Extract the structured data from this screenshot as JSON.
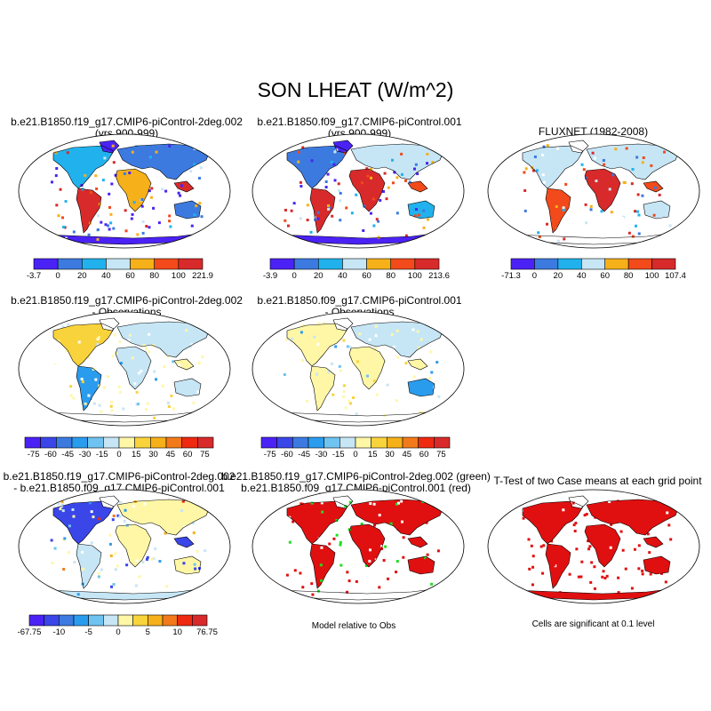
{
  "figure": {
    "title": "SON LHEAT (W/m^2)"
  },
  "chart_data": [
    {
      "type": "heatmap",
      "panel": "case1",
      "title_line1": "b.e21.B1850.f19_g17.CMIP6-piControl-2deg.002",
      "title_line2": "(yrs 900-999)",
      "colorbar": {
        "levels": [
          "-3.7",
          "0",
          "20",
          "40",
          "60",
          "80",
          "100",
          "221.9"
        ],
        "colors": [
          "#4b22f5",
          "#3c7ae0",
          "#21b2ee",
          "#c6e6f6",
          "#f6b01a",
          "#f24a1a",
          "#d82a2a"
        ]
      }
    },
    {
      "type": "heatmap",
      "panel": "case2",
      "title_line1": "b.e21.B1850.f09_g17.CMIP6-piControl.001",
      "title_line2": "(yrs 900-999)",
      "colorbar": {
        "levels": [
          "-3.9",
          "0",
          "20",
          "40",
          "60",
          "80",
          "100",
          "213.6"
        ],
        "colors": [
          "#4b22f5",
          "#3c7ae0",
          "#21b2ee",
          "#c6e6f6",
          "#f6b01a",
          "#f24a1a",
          "#d82a2a"
        ]
      }
    },
    {
      "type": "heatmap",
      "panel": "obs",
      "title_line1": "FLUXNET (1982-2008)",
      "title_line2": "",
      "colorbar": {
        "levels": [
          "-71.3",
          "0",
          "20",
          "40",
          "60",
          "80",
          "100",
          "107.4"
        ],
        "colors": [
          "#4b22f5",
          "#3c7ae0",
          "#21b2ee",
          "#c6e6f6",
          "#f6b01a",
          "#f24a1a",
          "#d82a2a"
        ]
      }
    },
    {
      "type": "heatmap",
      "panel": "case1-minus-obs",
      "title_line1": "b.e21.B1850.f19_g17.CMIP6-piControl-2deg.002",
      "title_line2": "- Observations",
      "colorbar": {
        "levels": [
          "-75",
          "-60",
          "-45",
          "-30",
          "-15",
          "0",
          "15",
          "30",
          "45",
          "60",
          "75"
        ],
        "colors": [
          "#4b22f5",
          "#3a46e8",
          "#3c7ae0",
          "#2a9cee",
          "#6fc3f0",
          "#c6e6f6",
          "#fff7a6",
          "#f9d33b",
          "#f6b01a",
          "#f27a1a",
          "#ee2a10",
          "#d82a2a"
        ]
      }
    },
    {
      "type": "heatmap",
      "panel": "case2-minus-obs",
      "title_line1": "b.e21.B1850.f09_g17.CMIP6-piControl.001",
      "title_line2": "- Observations",
      "colorbar": {
        "levels": [
          "-75",
          "-60",
          "-45",
          "-30",
          "-15",
          "0",
          "15",
          "30",
          "45",
          "60",
          "75"
        ],
        "colors": [
          "#4b22f5",
          "#3a46e8",
          "#3c7ae0",
          "#2a9cee",
          "#6fc3f0",
          "#c6e6f6",
          "#fff7a6",
          "#f9d33b",
          "#f6b01a",
          "#f27a1a",
          "#ee2a10",
          "#d82a2a"
        ]
      }
    },
    {
      "type": "heatmap",
      "panel": "case1-minus-case2",
      "title_line1": "b.e21.B1850.f19_g17.CMIP6-piControl-2deg.002",
      "title_line2": "- b.e21.B1850.f09_g17.CMIP6-piControl.001",
      "colorbar": {
        "levels": [
          "-67.75",
          "",
          "-10",
          "",
          "-5",
          "",
          "0",
          "",
          "5",
          "",
          "10",
          "",
          "76.75"
        ],
        "colors": [
          "#4b22f5",
          "#3a46e8",
          "#3c7ae0",
          "#2a9cee",
          "#6fc3f0",
          "#c6e6f6",
          "#fff7a6",
          "#f9d33b",
          "#f6b01a",
          "#f27a1a",
          "#ee2a10",
          "#d82a2a"
        ]
      }
    },
    {
      "type": "heatmap",
      "panel": "model-relative",
      "title_line1": "b.e21.B1850.f19_g17.CMIP6-piControl-2deg.002 (green)",
      "title_line2": "b.e21.B1850.f09_g17.CMIP6-piControl.001 (red)",
      "note": "Model relative to Obs",
      "colors": {
        "case1": "#22dd22",
        "case2": "#e01010"
      }
    },
    {
      "type": "heatmap",
      "panel": "t-test",
      "title_line1": "T-Test of two Case means at each grid point",
      "title_line2": "",
      "note": "Cells are significant at 0.1 level",
      "colors": {
        "significant": "#e01010"
      }
    }
  ]
}
